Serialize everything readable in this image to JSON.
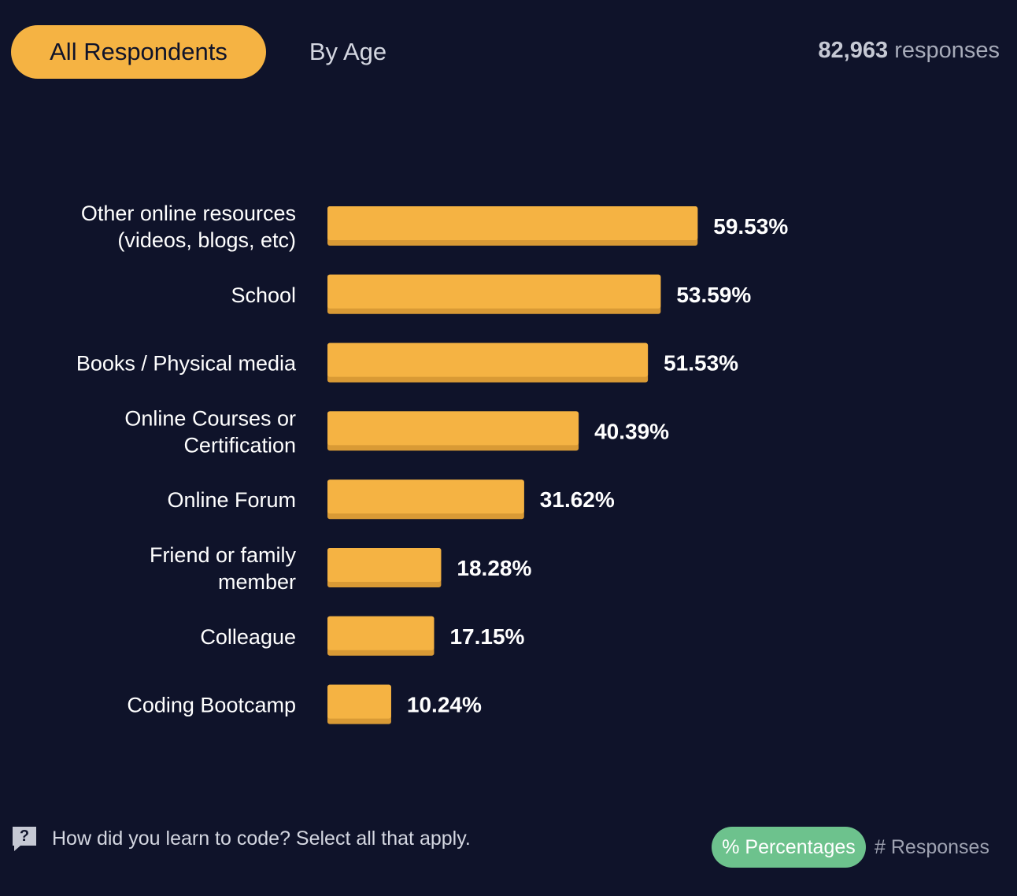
{
  "tabs": {
    "all_label": "All Respondents",
    "age_label": "By Age"
  },
  "responses": {
    "count": "82,963",
    "suffix": "responses"
  },
  "footer": {
    "question": "How did you learn to code? Select all that apply.",
    "help_symbol": "?",
    "toggle_percent": "% Percentages",
    "toggle_responses": "# Responses"
  },
  "colors": {
    "background": "#0f132a",
    "bar": "#f5b343",
    "bar_shadow": "#d99a35",
    "toggle_active": "#6dc28d"
  },
  "chart_data": {
    "type": "bar",
    "orientation": "horizontal",
    "title": "",
    "xlabel": "",
    "ylabel": "",
    "xlim": [
      0,
      100
    ],
    "categories": [
      [
        "Other online resources",
        "(videos, blogs, etc)"
      ],
      [
        "School"
      ],
      [
        "Books / Physical media"
      ],
      [
        "Online Courses or",
        "Certification"
      ],
      [
        "Online Forum"
      ],
      [
        "Friend or family",
        "member"
      ],
      [
        "Colleague"
      ],
      [
        "Coding Bootcamp"
      ]
    ],
    "values": [
      59.53,
      53.59,
      51.53,
      40.39,
      31.62,
      18.28,
      17.15,
      10.24
    ],
    "labels": [
      "59.53%",
      "53.59%",
      "51.53%",
      "40.39%",
      "31.62%",
      "18.28%",
      "17.15%",
      "10.24%"
    ]
  }
}
